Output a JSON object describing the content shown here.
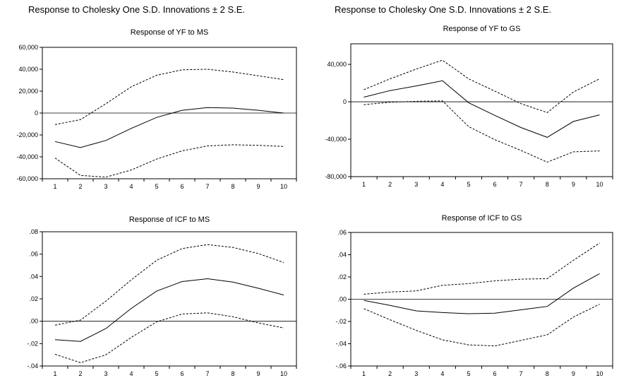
{
  "figure": {
    "supertitle_left": "Response to Cholesky One S.D. Innovations ± 2 S.E.",
    "supertitle_right": "Response to Cholesky One S.D. Innovations ± 2 S.E."
  },
  "chart_data": [
    {
      "type": "line",
      "title": "Response of YF to MS",
      "x": [
        1,
        2,
        3,
        4,
        5,
        6,
        7,
        8,
        9,
        10
      ],
      "ylim": [
        -60000,
        60000
      ],
      "yticks": [
        -60000,
        -40000,
        -20000,
        0,
        20000,
        40000,
        60000
      ],
      "ytick_labels": [
        "-60,000",
        "-40,000",
        "-20,000",
        "0",
        "20,000",
        "40,000",
        "60,000"
      ],
      "xtick_labels": [
        "1",
        "2",
        "3",
        "4",
        "5",
        "6",
        "7",
        "8",
        "9",
        "10"
      ],
      "series": [
        {
          "style": "solid",
          "values": [
            -26000,
            -31500,
            -25000,
            -14000,
            -4000,
            2500,
            5000,
            4500,
            2500,
            0
          ]
        },
        {
          "style": "dashed",
          "values": [
            -10500,
            -6000,
            8500,
            24000,
            34500,
            39500,
            40000,
            37500,
            34000,
            30500
          ]
        },
        {
          "style": "dashed",
          "values": [
            -41000,
            -57000,
            -58500,
            -52000,
            -42000,
            -34500,
            -30000,
            -29000,
            -29500,
            -30500
          ]
        }
      ]
    },
    {
      "type": "line",
      "title": "Response of YF to GS",
      "x": [
        1,
        2,
        3,
        4,
        5,
        6,
        7,
        8,
        9,
        10
      ],
      "ylim": [
        -80000,
        62000
      ],
      "yticks": [
        -80000,
        -40000,
        0,
        40000
      ],
      "ytick_labels": [
        "-80,000",
        "-40,000",
        "0",
        "40,000"
      ],
      "xtick_labels": [
        "1",
        "2",
        "3",
        "4",
        "5",
        "6",
        "7",
        "8",
        "9",
        "10"
      ],
      "series": [
        {
          "style": "solid",
          "values": [
            5000,
            12000,
            17000,
            22500,
            -1000,
            -14500,
            -27500,
            -38000,
            -21000,
            -14000
          ]
        },
        {
          "style": "dashed",
          "values": [
            13000,
            24500,
            35000,
            44500,
            24500,
            11500,
            -2000,
            -11500,
            10500,
            24500
          ]
        },
        {
          "style": "dashed",
          "values": [
            -3000,
            -500,
            500,
            1000,
            -26500,
            -40500,
            -52000,
            -64500,
            -53500,
            -52500
          ]
        }
      ]
    },
    {
      "type": "line",
      "title": "Response of ICF to MS",
      "x": [
        1,
        2,
        3,
        4,
        5,
        6,
        7,
        8,
        9,
        10
      ],
      "ylim": [
        -0.04,
        0.08
      ],
      "yticks": [
        -0.04,
        -0.02,
        0,
        0.02,
        0.04,
        0.06,
        0.08
      ],
      "ytick_labels": [
        "-.04",
        "-.02",
        ".00",
        ".02",
        ".04",
        ".06",
        ".08"
      ],
      "xtick_labels": [
        "1",
        "2",
        "3",
        "4",
        "5",
        "6",
        "7",
        "8",
        "9",
        "10"
      ],
      "series": [
        {
          "style": "solid",
          "values": [
            -0.0165,
            -0.018,
            -0.0065,
            0.0115,
            0.027,
            0.0355,
            0.038,
            0.035,
            0.0295,
            0.0235
          ]
        },
        {
          "style": "dashed",
          "values": [
            -0.0035,
            0.001,
            0.018,
            0.037,
            0.0545,
            0.065,
            0.0685,
            0.066,
            0.0605,
            0.0525
          ]
        },
        {
          "style": "dashed",
          "values": [
            -0.0295,
            -0.037,
            -0.03,
            -0.0145,
            -0.0005,
            0.0065,
            0.0075,
            0.004,
            -0.0015,
            -0.006
          ]
        }
      ]
    },
    {
      "type": "line",
      "title": "Response of ICF to GS",
      "x": [
        1,
        2,
        3,
        4,
        5,
        6,
        7,
        8,
        9,
        10
      ],
      "ylim": [
        -0.06,
        0.06
      ],
      "yticks": [
        -0.06,
        -0.04,
        -0.02,
        0,
        0.02,
        0.04,
        0.06
      ],
      "ytick_labels": [
        "-.06",
        "-.04",
        "-.02",
        ".00",
        ".02",
        ".04",
        ".06"
      ],
      "xtick_labels": [
        "1",
        "2",
        "3",
        "4",
        "5",
        "6",
        "7",
        "8",
        "9",
        "10"
      ],
      "series": [
        {
          "style": "solid",
          "values": [
            -0.001,
            -0.0055,
            -0.0105,
            -0.012,
            -0.013,
            -0.0125,
            -0.0095,
            -0.0065,
            0.01,
            0.023
          ]
        },
        {
          "style": "dashed",
          "values": [
            0.0045,
            0.0065,
            0.0075,
            0.0125,
            0.014,
            0.0165,
            0.018,
            0.0185,
            0.035,
            0.0505
          ]
        },
        {
          "style": "dashed",
          "values": [
            -0.0085,
            -0.0185,
            -0.028,
            -0.0365,
            -0.041,
            -0.042,
            -0.037,
            -0.032,
            -0.016,
            -0.0045
          ]
        }
      ]
    }
  ]
}
